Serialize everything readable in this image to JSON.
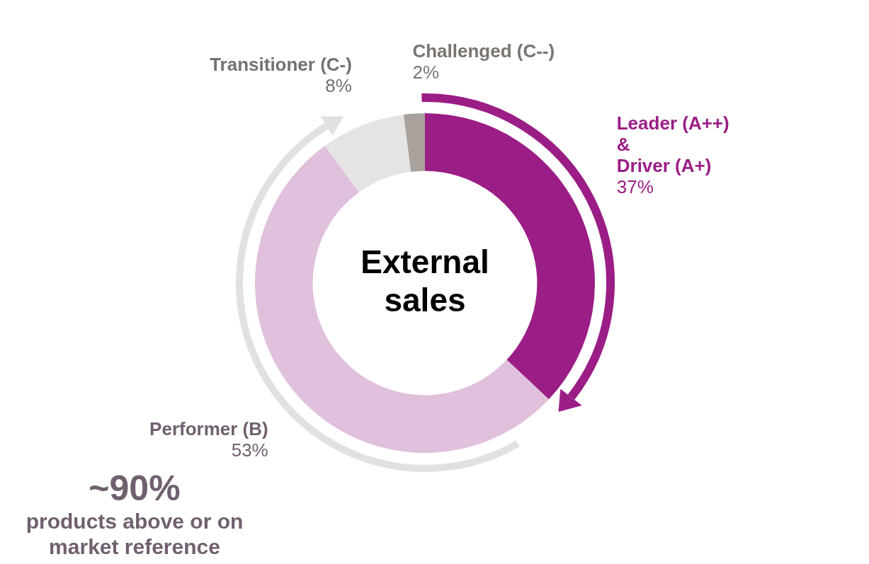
{
  "chart_data": {
    "type": "donut",
    "title": "External sales",
    "categories": [
      "Leader (A++)\n&\nDriver (A+)",
      "Performer (B)",
      "Transitioner (C-)",
      "Challenged (C--)"
    ],
    "values": [
      37,
      53,
      8,
      2
    ],
    "colors": [
      "#9b1d86",
      "#e0c0dc",
      "#e6e4e3",
      "#a8a19c"
    ],
    "value_labels": [
      "37%",
      "53%",
      "8%",
      "2%"
    ],
    "legend": false,
    "annotations": [
      "~90%\nproducts above or on\nmarket reference"
    ]
  }
}
